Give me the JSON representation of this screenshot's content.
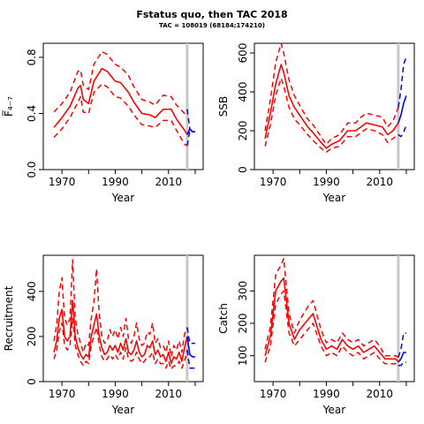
{
  "title": "Fstatus quo, then TAC 2018",
  "subtitle": "TAC = 108019 (68184;174210)",
  "colors": {
    "historic": "#ff0000",
    "forecast": "#0000ff",
    "marker": "#c8c8c8"
  },
  "marker_year": 2017,
  "chart_data": [
    {
      "type": "line",
      "title": "",
      "xlabel": "Year",
      "ylabel": "F̅₄₋₇",
      "xlim": [
        1963,
        2023
      ],
      "ylim": [
        0,
        0.9
      ],
      "xticks": [
        "1970",
        "1990",
        "2010"
      ],
      "yticks": [
        "0.0",
        "0.4",
        "0.8"
      ],
      "historic": {
        "x": [
          1967,
          1970,
          1973,
          1976,
          1977,
          1978,
          1980,
          1982,
          1985,
          1987,
          1990,
          1992,
          1995,
          1997,
          2000,
          2003,
          2005,
          2008,
          2011,
          2013,
          2016,
          2017
        ],
        "est": [
          0.3,
          0.37,
          0.45,
          0.58,
          0.6,
          0.5,
          0.47,
          0.63,
          0.72,
          0.7,
          0.63,
          0.62,
          0.55,
          0.48,
          0.4,
          0.39,
          0.37,
          0.43,
          0.43,
          0.36,
          0.28,
          0.25
        ],
        "low": [
          0.23,
          0.29,
          0.37,
          0.48,
          0.52,
          0.41,
          0.4,
          0.55,
          0.61,
          0.59,
          0.52,
          0.51,
          0.45,
          0.39,
          0.32,
          0.31,
          0.3,
          0.35,
          0.35,
          0.28,
          0.18,
          0.17
        ],
        "high": [
          0.41,
          0.47,
          0.55,
          0.7,
          0.71,
          0.6,
          0.57,
          0.75,
          0.84,
          0.82,
          0.75,
          0.73,
          0.67,
          0.59,
          0.5,
          0.48,
          0.46,
          0.53,
          0.52,
          0.46,
          0.4,
          0.43
        ]
      },
      "forecast": {
        "x": [
          2017,
          2018,
          2019,
          2020
        ],
        "est": [
          0.25,
          0.29,
          0.27,
          0.27
        ],
        "low": [
          0.17,
          0.28,
          0.27,
          0.27
        ],
        "high": [
          0.43,
          0.29,
          0.27,
          0.27
        ]
      }
    },
    {
      "type": "line",
      "title": "",
      "xlabel": "Year",
      "ylabel": "SSB",
      "xlim": [
        1963,
        2023
      ],
      "ylim": [
        0,
        650
      ],
      "xticks": [
        "1970",
        "1990",
        "2010"
      ],
      "yticks": [
        "0",
        "200",
        "400",
        "600"
      ],
      "historic": {
        "x": [
          1967,
          1969,
          1971,
          1973,
          1974,
          1976,
          1978,
          1980,
          1983,
          1985,
          1988,
          1990,
          1992,
          1995,
          1998,
          2001,
          2003,
          2005,
          2008,
          2011,
          2013,
          2015,
          2017
        ],
        "est": [
          160,
          290,
          440,
          540,
          500,
          380,
          320,
          280,
          220,
          190,
          140,
          110,
          130,
          150,
          200,
          200,
          220,
          240,
          230,
          220,
          180,
          200,
          240
        ],
        "low": [
          120,
          230,
          380,
          470,
          430,
          320,
          260,
          230,
          180,
          150,
          110,
          90,
          110,
          120,
          170,
          170,
          190,
          210,
          200,
          180,
          140,
          160,
          180
        ],
        "high": [
          200,
          360,
          550,
          650,
          600,
          460,
          380,
          330,
          260,
          230,
          170,
          130,
          160,
          180,
          240,
          240,
          270,
          290,
          280,
          270,
          220,
          250,
          320
        ]
      },
      "forecast": {
        "x": [
          2017,
          2018,
          2019,
          2020
        ],
        "est": [
          240,
          280,
          340,
          380
        ],
        "low": [
          180,
          170,
          190,
          230
        ],
        "high": [
          320,
          410,
          540,
          580
        ]
      }
    },
    {
      "type": "line",
      "title": "",
      "xlabel": "Year",
      "ylabel": "Recruitment",
      "xlim": [
        1963,
        2023
      ],
      "ylim": [
        0,
        560
      ],
      "xticks": [
        "1970",
        "1990",
        "2010"
      ],
      "yticks": [
        "0",
        "200",
        "400"
      ],
      "historic": {
        "x": [
          1967,
          1968,
          1969,
          1970,
          1971,
          1972,
          1973,
          1974,
          1975,
          1976,
          1977,
          1978,
          1979,
          1980,
          1981,
          1982,
          1983,
          1984,
          1985,
          1986,
          1987,
          1988,
          1989,
          1990,
          1991,
          1992,
          1993,
          1994,
          1995,
          1996,
          1997,
          1998,
          1999,
          2000,
          2001,
          2002,
          2003,
          2004,
          2005,
          2006,
          2007,
          2008,
          2009,
          2010,
          2011,
          2012,
          2013,
          2014,
          2015,
          2016,
          2017
        ],
        "est": [
          130,
          180,
          280,
          320,
          200,
          180,
          200,
          360,
          200,
          150,
          120,
          100,
          120,
          110,
          200,
          250,
          300,
          200,
          150,
          120,
          130,
          160,
          140,
          160,
          130,
          170,
          140,
          190,
          130,
          120,
          140,
          180,
          130,
          110,
          120,
          160,
          150,
          180,
          120,
          140,
          110,
          120,
          90,
          130,
          80,
          110,
          100,
          130,
          90,
          150,
          200
        ],
        "low": [
          100,
          140,
          220,
          260,
          160,
          140,
          160,
          280,
          160,
          120,
          90,
          70,
          90,
          80,
          160,
          200,
          240,
          160,
          110,
          90,
          100,
          120,
          100,
          120,
          100,
          130,
          100,
          150,
          100,
          90,
          100,
          130,
          100,
          80,
          90,
          110,
          110,
          130,
          80,
          100,
          80,
          80,
          60,
          90,
          55,
          70,
          70,
          90,
          60,
          90,
          140
        ],
        "high": [
          180,
          250,
          400,
          460,
          280,
          250,
          280,
          540,
          280,
          210,
          170,
          130,
          170,
          160,
          280,
          350,
          500,
          300,
          200,
          170,
          180,
          230,
          200,
          230,
          190,
          240,
          200,
          280,
          190,
          170,
          200,
          260,
          190,
          160,
          170,
          220,
          210,
          260,
          170,
          190,
          150,
          160,
          130,
          180,
          110,
          160,
          140,
          180,
          130,
          210,
          240
        ]
      },
      "forecast": {
        "x": [
          2017,
          2018,
          2019,
          2020
        ],
        "est": [
          200,
          120,
          110,
          110
        ],
        "low": [
          140,
          60,
          60,
          60
        ],
        "high": [
          240,
          170,
          170,
          170
        ]
      }
    },
    {
      "type": "line",
      "title": "",
      "xlabel": "Year",
      "ylabel": "Catch",
      "xlim": [
        1963,
        2023
      ],
      "ylim": [
        20,
        410
      ],
      "xticks": [
        "1970",
        "1990",
        "2010"
      ],
      "yticks": [
        "100",
        "200",
        "300"
      ],
      "historic": {
        "x": [
          1967,
          1969,
          1971,
          1973,
          1974,
          1976,
          1978,
          1980,
          1983,
          1985,
          1988,
          1990,
          1992,
          1994,
          1996,
          1998,
          2000,
          2002,
          2004,
          2006,
          2008,
          2010,
          2012,
          2014,
          2016,
          2017
        ],
        "est": [
          100,
          160,
          300,
          330,
          340,
          200,
          150,
          180,
          210,
          230,
          150,
          120,
          130,
          120,
          150,
          130,
          120,
          130,
          110,
          120,
          130,
          110,
          90,
          90,
          90,
          80
        ],
        "low": [
          80,
          130,
          260,
          290,
          300,
          170,
          130,
          150,
          180,
          200,
          130,
          100,
          110,
          100,
          130,
          110,
          100,
          110,
          90,
          100,
          110,
          90,
          75,
          75,
          75,
          70
        ],
        "high": [
          120,
          190,
          350,
          380,
          400,
          230,
          170,
          210,
          250,
          270,
          180,
          140,
          150,
          140,
          170,
          150,
          140,
          150,
          130,
          140,
          150,
          130,
          100,
          100,
          100,
          95
        ]
      },
      "forecast": {
        "x": [
          2017,
          2018,
          2019,
          2020
        ],
        "est": [
          80,
          90,
          110,
          110
        ],
        "low": [
          70,
          70,
          80,
          80
        ],
        "high": [
          95,
          120,
          170,
          170
        ]
      }
    }
  ]
}
